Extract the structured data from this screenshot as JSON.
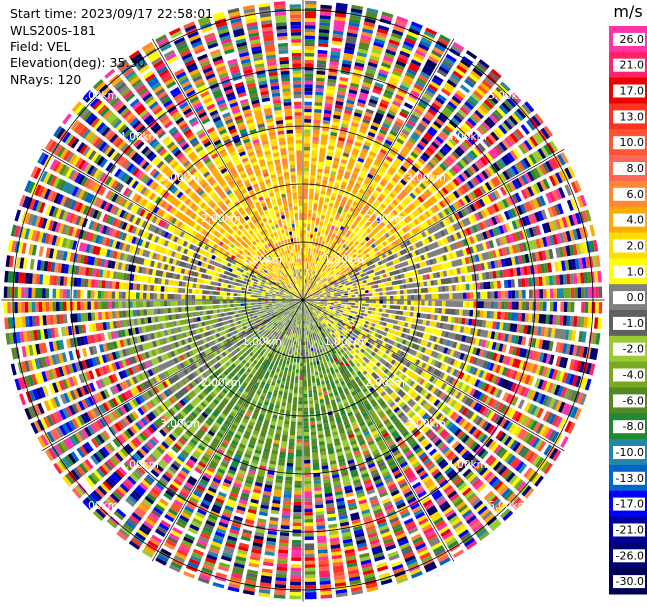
{
  "info": {
    "start_time": "Start time: 2023/09/17 22:58:01",
    "site": "WLS200s-181",
    "field": "Field: VEL",
    "elevation": "Elevation(deg): 35.30",
    "nrays": "NRays: 120"
  },
  "chart_data": {
    "type": "heatmap",
    "projection": "polar-ppi",
    "field": "VEL",
    "units": "m/s",
    "nrays": 120,
    "range_rings_km": [
      1.0,
      2.0,
      3.0,
      4.0,
      5.0
    ],
    "ring_labels": [
      "1.00km",
      "2.00km",
      "3.00km",
      "4.00km",
      "5.00km"
    ],
    "max_range_km": 5.2,
    "colorbar": {
      "label": "m/s",
      "ticks": [
        "26.0",
        "21.0",
        "17.0",
        "13.0",
        "10.0",
        "8.0",
        "6.0",
        "4.0",
        "2.0",
        "1.0",
        "0.0",
        "-1.0",
        "-2.0",
        "-4.0",
        "-6.0",
        "-8.0",
        "-10.0",
        "-13.0",
        "-17.0",
        "-21.0",
        "-26.0",
        "-30.0"
      ],
      "colors": [
        "#ff33aa",
        "#ff2266",
        "#ee0000",
        "#ff3322",
        "#ff5533",
        "#ff6655",
        "#ff8833",
        "#ffaa00",
        "#ffdd00",
        "#ffff00",
        "#808080",
        "#606060",
        "#99cc33",
        "#77aa22",
        "#558822",
        "#228833",
        "#2288aa",
        "#0066cc",
        "#0000ff",
        "#000099",
        "#000077",
        "#000055"
      ]
    },
    "velocity_pattern": {
      "north_sector": "2.0 to 8.0 m/s (yellow-orange)",
      "south_sector": "-2.0 to -6.0 m/s (green)",
      "east_west": "0.0 to -1.0 m/s (gray)",
      "beyond_3km": "noisy"
    }
  }
}
